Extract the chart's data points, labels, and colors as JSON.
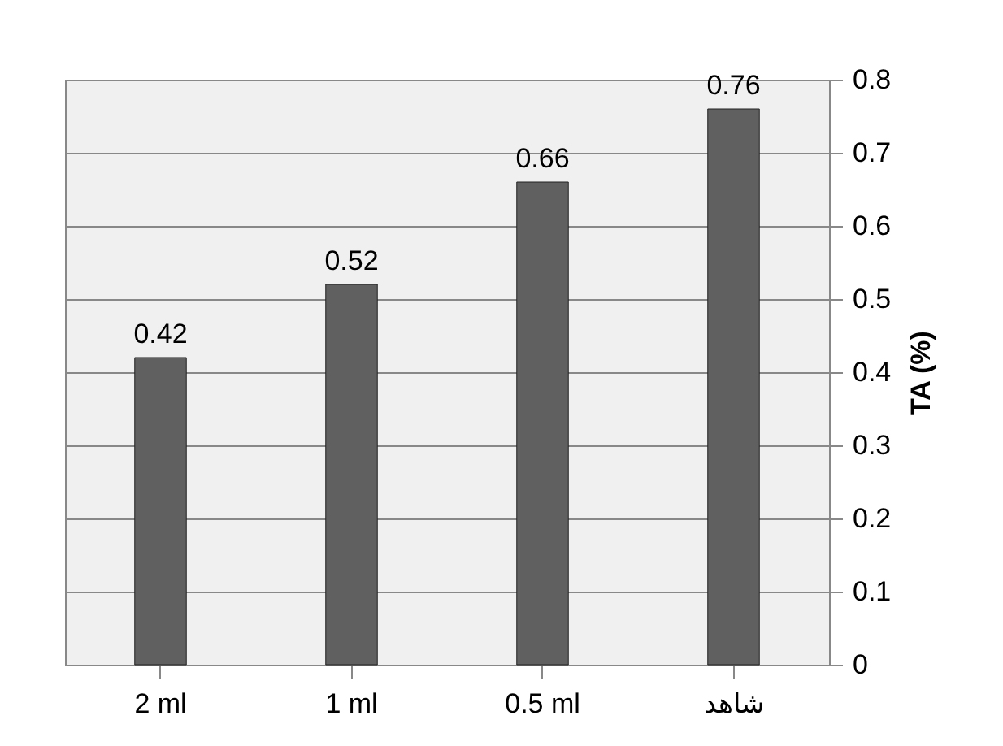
{
  "chart_data": {
    "type": "bar",
    "ylabel": "TA (%)",
    "categories": [
      "2 ml",
      "1 ml",
      "0.5 ml",
      "شاهد"
    ],
    "values": [
      0.42,
      0.52,
      0.66,
      0.76
    ],
    "color": "#606060",
    "ylim": [
      0,
      0.8
    ],
    "yticks": [
      0,
      0.1,
      0.2,
      0.3,
      0.4,
      0.5,
      0.6,
      0.7,
      0.8
    ],
    "grid": "y",
    "data_labels": true
  }
}
